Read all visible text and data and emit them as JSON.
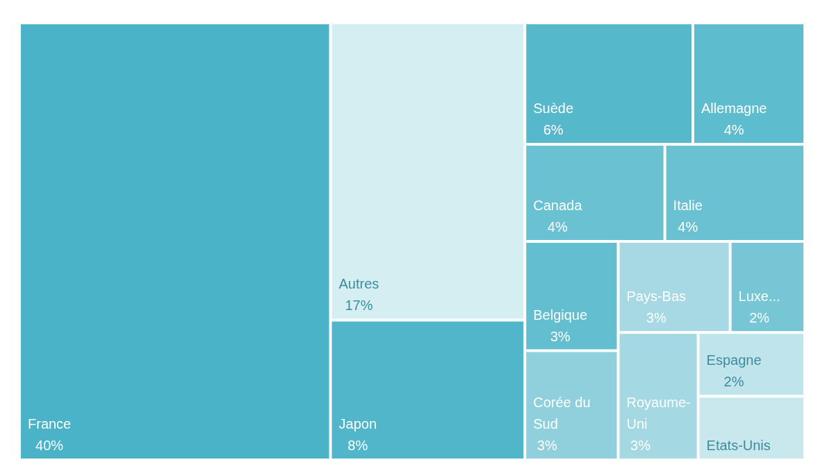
{
  "chart_data": {
    "type": "other",
    "categories": [
      "France",
      "Autres",
      "Japon",
      "Suède",
      "Allemagne",
      "Canada",
      "Italie",
      "Belgique",
      "Corée du Sud",
      "Pays-Bas",
      "Luxe...",
      "Royaume-Uni",
      "Espagne",
      "Etats-Unis"
    ],
    "values": [
      40,
      17,
      8,
      6,
      4,
      4,
      4,
      3,
      3,
      3,
      2,
      3,
      2,
      null
    ],
    "value_labels": [
      "40%",
      "17%",
      "8%",
      "6%",
      "4%",
      "4%",
      "4%",
      "3%",
      "3%",
      "3%",
      "2%",
      "3%",
      "2%",
      null
    ],
    "colors": [
      "#4ab3c8",
      "#d5eef2",
      "#52b6ca",
      "#55b8cb",
      "#5dbccd",
      "#6ac1d2",
      "#6ac1d2",
      "#63bed0",
      "#8fd0dc",
      "#a6d9e3",
      "#76c6d5",
      "#a4d8e2",
      "#bfe4eb",
      "#c8e8ee"
    ]
  }
}
